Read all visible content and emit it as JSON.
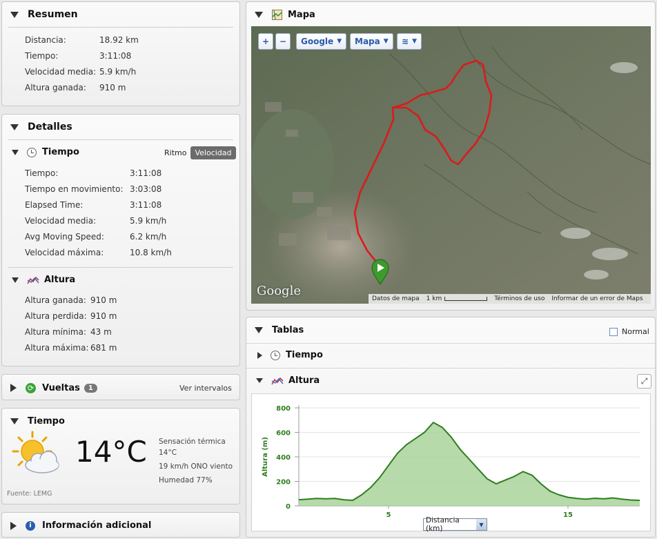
{
  "summary": {
    "title": "Resumen",
    "rows": [
      {
        "k": "Distancia:",
        "v": "18.92 km"
      },
      {
        "k": "Tiempo:",
        "v": "3:11:08"
      },
      {
        "k": "Velocidad media:",
        "v": "5.9 km/h"
      },
      {
        "k": "Altura ganada:",
        "v": "910 m"
      }
    ]
  },
  "details": {
    "title": "Detalles",
    "time_title": "Tiempo",
    "toggle": {
      "ritmo": "Ritmo",
      "velocidad": "Velocidad",
      "selected": "Velocidad"
    },
    "time_rows": [
      {
        "k": "Tiempo:",
        "v": "3:11:08"
      },
      {
        "k": "Tiempo en movimiento:",
        "v": "3:03:08"
      },
      {
        "k": "Elapsed Time:",
        "v": "3:11:08"
      },
      {
        "k": "Velocidad media:",
        "v": "5.9 km/h"
      },
      {
        "k": "Avg Moving Speed:",
        "v": "6.2 km/h"
      },
      {
        "k": "Velocidad máxima:",
        "v": "10.8 km/h"
      }
    ],
    "altitude_title": "Altura",
    "altitude_rows": [
      {
        "k": "Altura ganada:",
        "v": "910 m"
      },
      {
        "k": "Altura perdida:",
        "v": "910 m"
      },
      {
        "k": "Altura mínima:",
        "v": "43 m"
      },
      {
        "k": "Altura máxima:",
        "v": "681 m"
      }
    ]
  },
  "laps": {
    "title": "Vueltas",
    "count": "1",
    "link": "Ver intervalos"
  },
  "weather": {
    "title": "Tiempo",
    "temperature": "14°C",
    "feels_label": "Sensación térmica",
    "feels_value": "14°C",
    "wind": "19 km/h ONO viento",
    "humidity": "Humedad 77%",
    "source": "Fuente: LEMG",
    "icon": "partly-cloudy-icon"
  },
  "extra": {
    "title": "Información adicional"
  },
  "map": {
    "title": "Mapa",
    "zoom_in": "+",
    "zoom_out": "−",
    "provider": "Google",
    "type": "Mapa",
    "logo": "Google",
    "footer": {
      "data": "Datos de mapa",
      "scale": "1 km",
      "terms": "Términos de uso",
      "report": "Informar de un error de Maps"
    },
    "route_color": "#d81c1c",
    "start_marker_color": "#3d9a2c"
  },
  "tables": {
    "title": "Tablas",
    "normal_label": "Normal",
    "time_row": "Tiempo",
    "altitude_row": "Altura"
  },
  "chart_data": {
    "type": "area",
    "title": "",
    "xlabel": "Distancia (km)",
    "ylabel": "Altura (m)",
    "xlim": [
      0,
      19
    ],
    "ylim": [
      0,
      800
    ],
    "x_ticks": [
      "5",
      "15"
    ],
    "y_ticks": [
      "0",
      "200",
      "400",
      "600",
      "800"
    ],
    "series": [
      {
        "color": "#2e7d1e",
        "fill": "#a9d39a",
        "x": [
          0,
          0.5,
          1,
          1.5,
          2,
          2.5,
          3,
          3.5,
          4,
          4.5,
          5,
          5.5,
          6,
          6.5,
          7,
          7.5,
          8,
          8.5,
          9,
          9.5,
          10,
          10.5,
          11,
          11.5,
          12,
          12.5,
          13,
          13.5,
          14,
          14.5,
          15,
          15.5,
          16,
          16.5,
          17,
          17.5,
          18,
          18.5,
          19
        ],
        "values": [
          50,
          55,
          60,
          58,
          60,
          50,
          45,
          90,
          150,
          230,
          330,
          430,
          500,
          550,
          600,
          681,
          640,
          560,
          460,
          380,
          300,
          220,
          180,
          210,
          240,
          280,
          250,
          180,
          120,
          90,
          70,
          60,
          55,
          62,
          58,
          65,
          55,
          48,
          45
        ]
      }
    ],
    "grid": true
  }
}
